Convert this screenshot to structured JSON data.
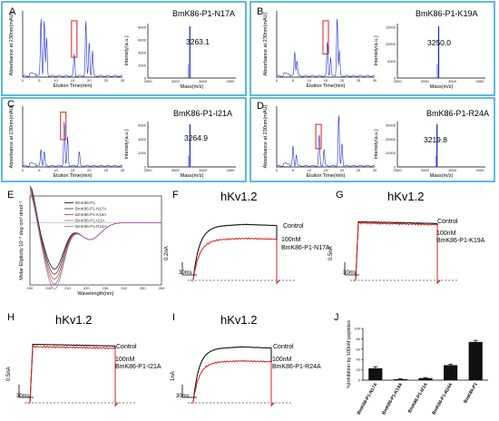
{
  "panels": {
    "A": {
      "letter": "A",
      "title": "BmK86-P1-N17A",
      "peak": "3263.1",
      "mass_max": "8000",
      "mass_ticks": [
        "0",
        "2000",
        "4000",
        "6000",
        "8000"
      ]
    },
    "B": {
      "letter": "B",
      "title": "BmK86-P1-K19A",
      "peak": "3250.0",
      "mass_max": "15000",
      "mass_ticks": [
        "0",
        "5000",
        "10000",
        "15000"
      ]
    },
    "C": {
      "letter": "C",
      "title": "BmK86-P1-I21A",
      "peak": "3264.9",
      "mass_max": "6000",
      "mass_ticks": [
        "0",
        "2000",
        "4000",
        "6000"
      ]
    },
    "D": {
      "letter": "D",
      "title": "BmK86-P1-R24A",
      "peak": "3219.8",
      "mass_max": "30000",
      "mass_ticks": [
        "0",
        "10000",
        "20000",
        "30000"
      ]
    }
  },
  "hplc_axes": {
    "ylabel": "Absorbance at 230nm(mAU)",
    "xlabel": "Elution Time(min)",
    "xticks": [
      "0",
      "5",
      "10",
      "15",
      "20",
      "25",
      "30"
    ]
  },
  "ms_axes": {
    "ylabel": "Intensity(a.u.)",
    "xlabel": "Mass(m/z)",
    "xticks": [
      "2500",
      "3000",
      "3500",
      "4000"
    ]
  },
  "cd": {
    "letter": "E",
    "ylabel": "Molar Elipticity 10⁻³ deg cm² dmol⁻¹",
    "xlabel": "Wavelength(nm)",
    "xticks": [
      "190",
      "200",
      "210",
      "220",
      "230",
      "240",
      "250",
      "260"
    ],
    "legend": [
      "BmK86-P1",
      "BmK86-P1-N17A",
      "BmK86-P1-K19A",
      "BmK86-P1-I21A",
      "BmK86-P1-R24A"
    ],
    "colors": [
      "#000000",
      "#333333",
      "#d23030",
      "#7a7a7a",
      "#b060b0"
    ]
  },
  "traces": {
    "F": {
      "letter": "F",
      "title": "hKv1.2",
      "control": "Control",
      "dose": "100nM",
      "peptide": "BmK86-P1-N17A",
      "scale_y": "0.2nA",
      "scale_x": "30ms"
    },
    "G": {
      "letter": "G",
      "title": "hKv1.2",
      "control": "Control",
      "dose": "100nM",
      "peptide": "BmK86-P1-K19A",
      "scale_y": "0.5nA",
      "scale_x": "30ms"
    },
    "H": {
      "letter": "H",
      "title": "hKv1.2",
      "control": "Control",
      "dose": "100nM",
      "peptide": "BmK86-P1-I21A",
      "scale_y": "0.5nA",
      "scale_x": "30ms"
    },
    "I": {
      "letter": "I",
      "title": "hKv1.2",
      "control": "Control",
      "dose": "100nM",
      "peptide": "BmK86-P1-R24A",
      "scale_y": "1nA",
      "scale_x": "30ms"
    }
  },
  "chart_data": {
    "type": "bar",
    "letter": "J",
    "ylabel": "%Inhibition by 100nM peptides",
    "categories": [
      "BmK86-P1-N17A",
      "BmK86-P1-K19A",
      "BmK86-P1-I21A",
      "BmK86-P1-R24A",
      "BmK86-P1"
    ],
    "values": [
      23,
      2,
      4,
      29,
      74
    ],
    "errors": [
      3,
      1,
      1,
      2,
      3
    ],
    "ylim": [
      0,
      100
    ],
    "yticks": [
      "0",
      "20",
      "40",
      "60",
      "80",
      "100"
    ]
  }
}
